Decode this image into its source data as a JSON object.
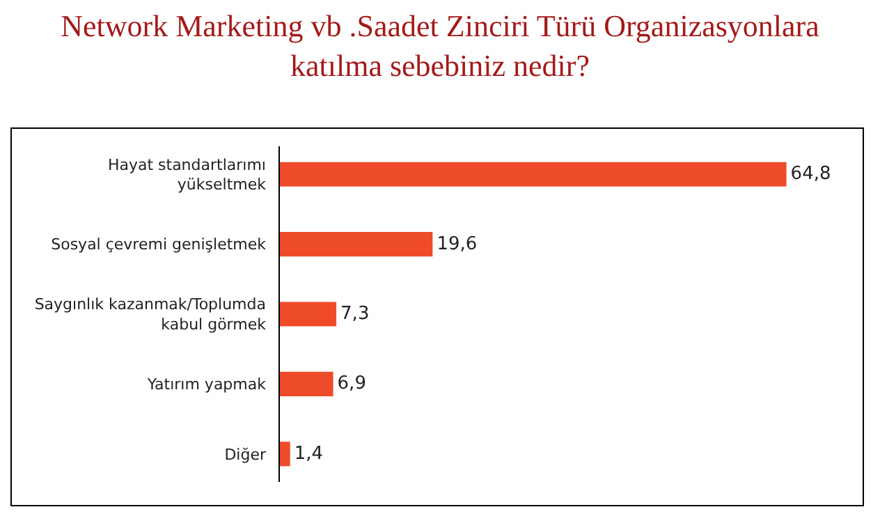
{
  "chart_data": {
    "type": "bar",
    "orientation": "horizontal",
    "title": "Network Marketing vb .Saadet Zinciri Türü Organizasyonlara katılma sebebiniz nedir?",
    "categories": [
      "Hayat standartlarımı yükseltmek",
      "Sosyal çevremi genişletmek",
      "Saygınlık kazanmak/Toplumda kabul görmek",
      "Yatırım yapmak",
      "Diğer"
    ],
    "values": [
      64.8,
      19.6,
      7.3,
      6.9,
      1.4
    ],
    "value_labels": [
      "64,8",
      "19,6",
      "7,3",
      "6,9",
      "1,4"
    ],
    "color": "#ee4b2b",
    "legend": false
  }
}
